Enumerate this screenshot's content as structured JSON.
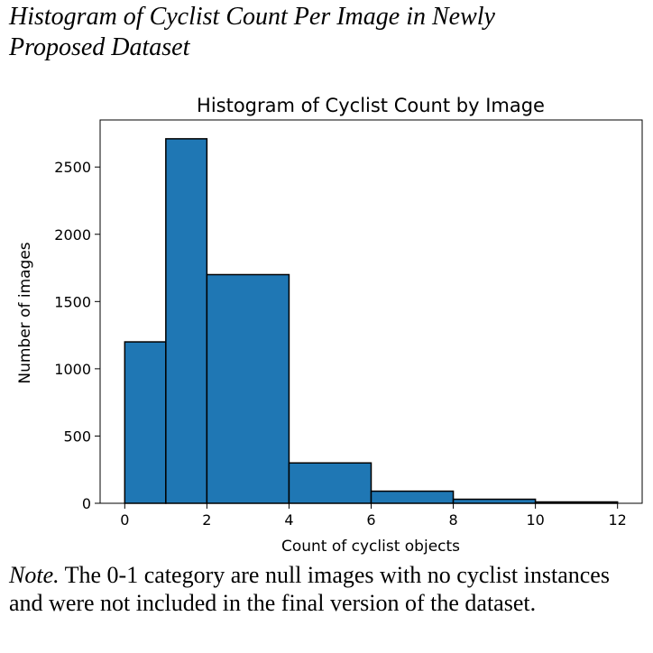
{
  "figure": {
    "caption_line1": "Histogram of Cyclist Count Per Image in Newly",
    "caption_line2": "Proposed Dataset",
    "note_label": "Note.",
    "note_text": " The 0-1 category are null images with no cyclist instances and were not included in the final version of the dataset."
  },
  "chart_data": {
    "type": "bar",
    "title": "Histogram of Cyclist Count by Image",
    "xlabel": "Count of cyclist objects",
    "ylabel": "Number of images",
    "xlim": [
      -0.6,
      12.6
    ],
    "ylim": [
      0,
      2850
    ],
    "xticks": [
      0,
      2,
      4,
      6,
      8,
      10,
      12
    ],
    "yticks": [
      0,
      500,
      1000,
      1500,
      2000,
      2500
    ],
    "bins": [
      {
        "start": 0,
        "end": 1,
        "value": 1200
      },
      {
        "start": 1,
        "end": 2,
        "value": 2710
      },
      {
        "start": 2,
        "end": 4,
        "value": 1700
      },
      {
        "start": 4,
        "end": 6,
        "value": 300
      },
      {
        "start": 6,
        "end": 8,
        "value": 90
      },
      {
        "start": 8,
        "end": 10,
        "value": 30
      },
      {
        "start": 10,
        "end": 12,
        "value": 10
      }
    ],
    "bar_color": "#1f77b4",
    "edge_color": "#000000",
    "grid": false
  }
}
